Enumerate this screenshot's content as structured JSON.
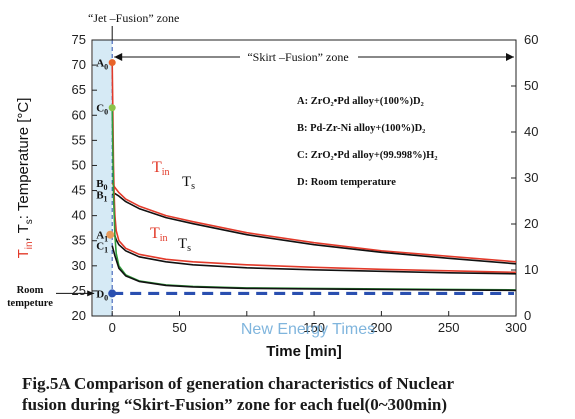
{
  "chart_data": {
    "type": "line",
    "xlabel": "Time [min]",
    "ylabel_main": "Temperature [°C]",
    "ylabel_tin": "T",
    "ylabel_tin_sub": "in",
    "ylabel_sep": ", T",
    "ylabel_ts_sub": "s",
    "ylabel_colon": ": ",
    "xlim": [
      -15,
      300
    ],
    "ylim_left": [
      20,
      75
    ],
    "ylim_right": [
      0,
      60
    ],
    "xticks": [
      0,
      50,
      100,
      150,
      200,
      250,
      300
    ],
    "xtick_labels": [
      "0",
      "50",
      "",
      "150",
      "200",
      "250",
      "300"
    ],
    "yticks_left": [
      20,
      25,
      30,
      35,
      40,
      45,
      50,
      55,
      60,
      65,
      70,
      75
    ],
    "yticks_right": [
      0,
      10,
      20,
      30,
      40,
      50,
      60
    ],
    "zones": {
      "jet": "“Jet –Fusion” zone",
      "skirt": "“Skirt –Fusion” zone"
    },
    "legend": [
      "A: ZrO₂•Pd alloy+(100%)D₂",
      "B: Pd-Zr-Ni alloy+(100%)D₂",
      "C: ZrO₂•Pd alloy+(99.998%)H₂",
      "D: Room temperature"
    ],
    "point_labels": [
      {
        "main": "A",
        "sub": "0",
        "y": 70.5
      },
      {
        "main": "C",
        "sub": "0",
        "y": 61.5
      },
      {
        "main": "B",
        "sub": "0",
        "y": 46.5
      },
      {
        "main": "B",
        "sub": "1",
        "y": 44.2
      },
      {
        "main": "A",
        "sub": "1",
        "y": 36.2
      },
      {
        "main": "C",
        "sub": "1",
        "y": 34.0
      },
      {
        "main": "D",
        "sub": "0",
        "y": 24.5
      }
    ],
    "curve_labels": {
      "upper_tin": "T",
      "upper_tin_sub": "in",
      "upper_ts": "T",
      "upper_ts_sub": "s",
      "lower_tin": "T",
      "lower_tin_sub": "in",
      "lower_ts": "T",
      "lower_ts_sub": "s"
    },
    "room_label": [
      "Room",
      "tempeture"
    ],
    "series": [
      {
        "id": "B_Tin",
        "color": "#e23a2a",
        "x": [
          0,
          2,
          5,
          10,
          20,
          40,
          60,
          100,
          150,
          200,
          250,
          300
        ],
        "y": [
          46.5,
          45.6,
          44.6,
          43.3,
          41.9,
          40.0,
          38.8,
          36.6,
          34.6,
          33.0,
          31.9,
          30.8
        ]
      },
      {
        "id": "B_Ts",
        "color": "#111111",
        "x": [
          0,
          2,
          5,
          10,
          20,
          40,
          60,
          100,
          150,
          200,
          250,
          300
        ],
        "y": [
          44.2,
          44.4,
          43.9,
          42.8,
          41.4,
          39.6,
          38.4,
          36.2,
          34.2,
          32.7,
          31.5,
          30.4
        ]
      },
      {
        "id": "A_Tin",
        "color": "#e23a2a",
        "x": [
          0,
          0.5,
          1,
          1.5,
          2,
          3,
          5,
          10,
          20,
          40,
          60,
          100,
          150,
          200,
          250,
          300
        ],
        "y": [
          70.5,
          60,
          50,
          44,
          40,
          37,
          35,
          33.5,
          32.3,
          31.3,
          30.8,
          30.2,
          29.7,
          29.3,
          29.0,
          28.7
        ]
      },
      {
        "id": "A_Ts",
        "color": "#111111",
        "x": [
          0,
          2,
          3,
          5,
          10,
          20,
          40,
          60,
          100,
          150,
          200,
          250,
          300
        ],
        "y": [
          36.2,
          36.0,
          35.2,
          34.2,
          33.0,
          31.8,
          30.8,
          30.2,
          29.6,
          29.2,
          28.9,
          28.6,
          28.4
        ]
      },
      {
        "id": "C_Tin",
        "color": "#2f9a3a",
        "x": [
          0,
          0.5,
          1,
          2,
          3,
          5,
          10,
          20,
          40,
          60,
          100,
          150,
          200,
          250,
          300
        ],
        "y": [
          61.5,
          52,
          44,
          36,
          32.5,
          30,
          28.2,
          27.0,
          26.2,
          25.9,
          25.6,
          25.5,
          25.4,
          25.3,
          25.2
        ]
      },
      {
        "id": "C_Ts",
        "color": "#111111",
        "x": [
          0,
          2,
          5,
          10,
          20,
          40,
          60,
          100,
          150,
          200,
          250,
          300
        ],
        "y": [
          34.0,
          32.0,
          29.5,
          28.0,
          26.9,
          26.1,
          25.8,
          25.5,
          25.4,
          25.3,
          25.2,
          25.1
        ]
      }
    ],
    "room_line": {
      "color": "#2a4fb0",
      "y": 24.5
    }
  },
  "watermark": "New Energy Times",
  "caption": {
    "line1": "Fig.5A  Comparison of generation characteristics of Nuclear",
    "line2": "fusion during “Skirt-Fusion” zone for each fuel(0~300min)"
  }
}
